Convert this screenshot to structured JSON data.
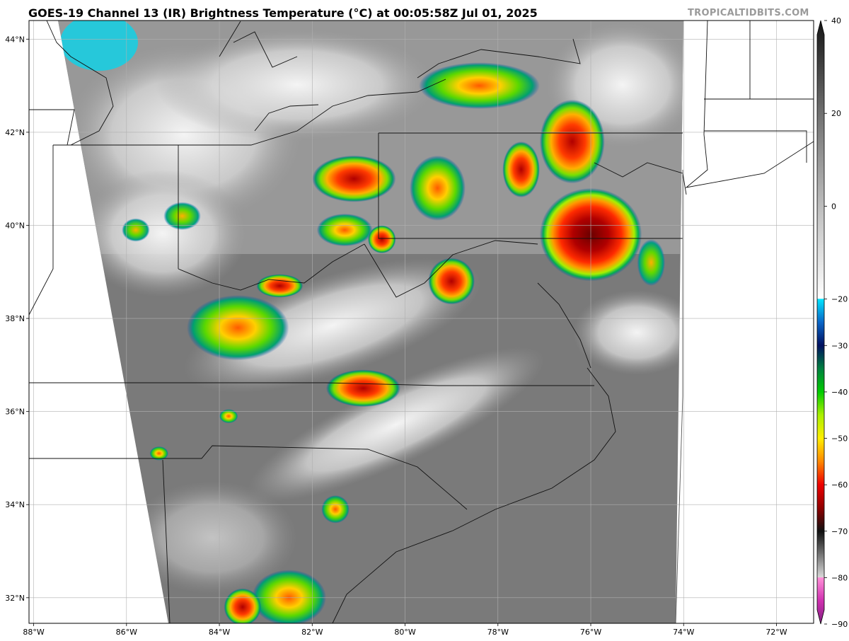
{
  "header": {
    "title": "GOES-19 Channel 13 (IR) Brightness Temperature (°C) at 00:05:58Z Jul 01, 2025",
    "credit": "TROPICALTIDBITS.COM"
  },
  "map": {
    "lon_min": -88.1,
    "lon_max": -71.2,
    "lat_min": 31.45,
    "lat_max": 44.4,
    "lon_ticks": [
      -88,
      -86,
      -84,
      -82,
      -80,
      -78,
      -76,
      -74,
      -72
    ],
    "lon_tick_labels": [
      "88°W",
      "86°W",
      "84°W",
      "82°W",
      "80°W",
      "78°W",
      "76°W",
      "74°W",
      "72°W"
    ],
    "lat_ticks": [
      32,
      34,
      36,
      38,
      40,
      42,
      44
    ],
    "lat_tick_labels": [
      "32°N",
      "34°N",
      "36°N",
      "38°N",
      "40°N",
      "42°N",
      "44°N"
    ],
    "storm_cells": [
      {
        "lon": -76.0,
        "lat": 39.8,
        "rx": 1.1,
        "ry": 1.0,
        "level": "deep"
      },
      {
        "lon": -76.4,
        "lat": 41.8,
        "rx": 0.7,
        "ry": 0.9,
        "level": "strong"
      },
      {
        "lon": -77.5,
        "lat": 41.2,
        "rx": 0.4,
        "ry": 0.6,
        "level": "strong"
      },
      {
        "lon": -78.4,
        "lat": 43.0,
        "rx": 1.3,
        "ry": 0.5,
        "level": "moderate"
      },
      {
        "lon": -81.1,
        "lat": 41.0,
        "rx": 0.9,
        "ry": 0.5,
        "level": "strong"
      },
      {
        "lon": -79.3,
        "lat": 40.8,
        "rx": 0.6,
        "ry": 0.7,
        "level": "moderate"
      },
      {
        "lon": -81.3,
        "lat": 39.9,
        "rx": 0.6,
        "ry": 0.35,
        "level": "moderate"
      },
      {
        "lon": -80.5,
        "lat": 39.7,
        "rx": 0.3,
        "ry": 0.3,
        "level": "strong"
      },
      {
        "lon": -79.0,
        "lat": 38.8,
        "rx": 0.5,
        "ry": 0.5,
        "level": "strong"
      },
      {
        "lon": -82.7,
        "lat": 38.7,
        "rx": 0.5,
        "ry": 0.25,
        "level": "strong"
      },
      {
        "lon": -83.6,
        "lat": 37.8,
        "rx": 1.1,
        "ry": 0.7,
        "level": "moderate"
      },
      {
        "lon": -80.9,
        "lat": 36.5,
        "rx": 0.8,
        "ry": 0.4,
        "level": "strong"
      },
      {
        "lon": -85.8,
        "lat": 39.9,
        "rx": 0.3,
        "ry": 0.25,
        "level": "weak"
      },
      {
        "lon": -84.8,
        "lat": 40.2,
        "rx": 0.4,
        "ry": 0.3,
        "level": "weak"
      },
      {
        "lon": -81.5,
        "lat": 33.9,
        "rx": 0.3,
        "ry": 0.3,
        "level": "moderate"
      },
      {
        "lon": -82.5,
        "lat": 32.0,
        "rx": 0.8,
        "ry": 0.6,
        "level": "moderate"
      },
      {
        "lon": -83.5,
        "lat": 31.8,
        "rx": 0.4,
        "ry": 0.4,
        "level": "strong"
      },
      {
        "lon": -74.7,
        "lat": 39.2,
        "rx": 0.3,
        "ry": 0.5,
        "level": "weak"
      },
      {
        "lon": -83.8,
        "lat": 35.9,
        "rx": 0.2,
        "ry": 0.15,
        "level": "moderate"
      },
      {
        "lon": -85.3,
        "lat": 35.1,
        "rx": 0.2,
        "ry": 0.15,
        "level": "moderate"
      }
    ]
  },
  "colorbar": {
    "min": -90,
    "max": 40,
    "tick_values": [
      40,
      20,
      0,
      -20,
      -30,
      -40,
      -50,
      -60,
      -70,
      -80,
      -90
    ],
    "tick_labels": [
      "40",
      "20",
      "0",
      "−20",
      "−30",
      "−40",
      "−50",
      "−60",
      "−70",
      "−80",
      "−90"
    ],
    "stops": [
      {
        "value": 40,
        "color": "#141414"
      },
      {
        "value": 20,
        "color": "#707070"
      },
      {
        "value": 0,
        "color": "#bdbdbd"
      },
      {
        "value": -19.9,
        "color": "#ffffff"
      },
      {
        "value": -20,
        "color": "#00e5ff"
      },
      {
        "value": -25,
        "color": "#0a66c8"
      },
      {
        "value": -30,
        "color": "#001060"
      },
      {
        "value": -35,
        "color": "#008040"
      },
      {
        "value": -40,
        "color": "#00cc00"
      },
      {
        "value": -45,
        "color": "#aaf000"
      },
      {
        "value": -50,
        "color": "#ffee00"
      },
      {
        "value": -55,
        "color": "#ff8800"
      },
      {
        "value": -60,
        "color": "#ee0000"
      },
      {
        "value": -65,
        "color": "#900000"
      },
      {
        "value": -70,
        "color": "#101010"
      },
      {
        "value": -79.9,
        "color": "#d8d8d8"
      },
      {
        "value": -80,
        "color": "#ff90d8"
      },
      {
        "value": -85,
        "color": "#d030b0"
      },
      {
        "value": -90,
        "color": "#802080"
      }
    ]
  }
}
